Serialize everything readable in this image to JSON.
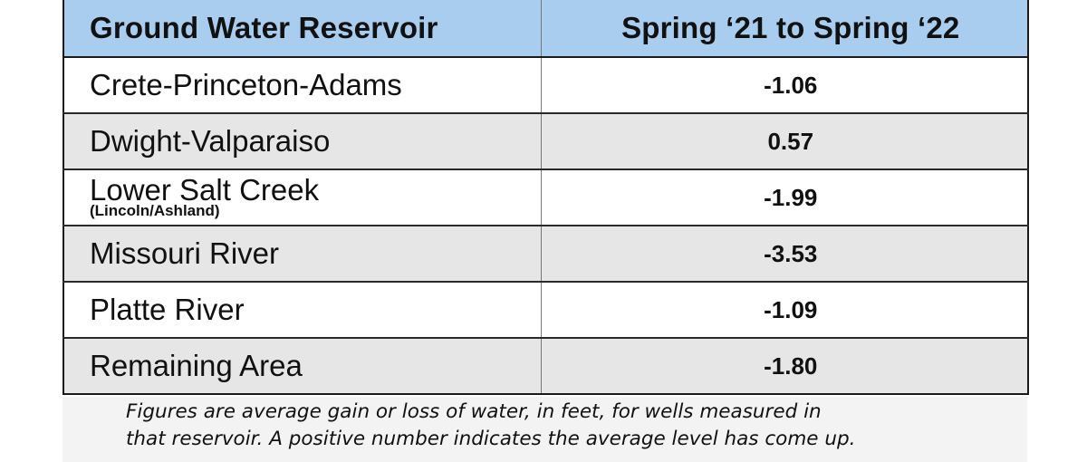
{
  "table": {
    "headers": [
      "Ground Water Reservoir",
      "Spring ‘21  to Spring ‘22"
    ],
    "rows": [
      {
        "name": "Crete-Princeton-Adams",
        "note": "",
        "value": "-1.06"
      },
      {
        "name": "Dwight-Valparaiso",
        "note": "",
        "value": "0.57"
      },
      {
        "name": "Lower Salt Creek",
        "note": "(Lincoln/Ashland)",
        "value": "-1.99"
      },
      {
        "name": "Missouri River",
        "note": "",
        "value": "-3.53"
      },
      {
        "name": "Platte River",
        "note": "",
        "value": "-1.09"
      },
      {
        "name": "Remaining Area",
        "note": "",
        "value": "-1.80"
      }
    ],
    "header_color": "#a9cdef",
    "shade_color": "#e6e6e6"
  },
  "caption": {
    "line1": "Figures are average gain or loss of water, in feet, for wells measured in",
    "line2": "that reservoir. A positive number indicates the average level has come up."
  }
}
